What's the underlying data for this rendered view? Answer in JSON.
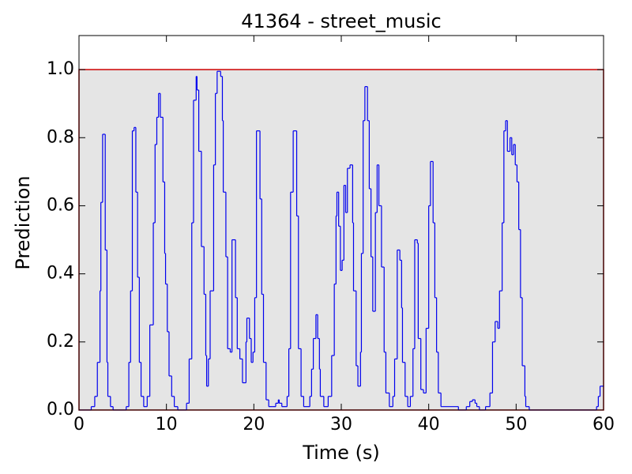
{
  "chart_data": {
    "type": "step",
    "title": "41364 - street_music",
    "x_label": "Time (s)",
    "y_label": "Prediction",
    "xlim": [
      0,
      60
    ],
    "xticks": [
      0,
      10,
      20,
      30,
      40,
      50,
      60
    ],
    "ylim": [
      0,
      1.1
    ],
    "yticks": [
      {
        "value": 0,
        "label": "0.0"
      },
      0.2,
      0.4,
      0.6,
      0.8,
      {
        "value": 1,
        "label": "1.0"
      }
    ],
    "regions": [
      {
        "start": 0,
        "end": 60,
        "value": 1,
        "color": "#e5e5e5",
        "edgecolor": "#cc0000"
      }
    ],
    "series": [
      {
        "color": "#0000ee",
        "x": [
          0,
          1.4,
          1.8,
          2.1,
          2.4,
          2.5,
          2.7,
          3.0,
          3.2,
          3.3,
          3.6,
          3.9,
          4.1,
          5.4,
          5.7,
          5.9,
          6.1,
          6.3,
          6.5,
          6.7,
          6.9,
          7.1,
          7.4,
          7.8,
          8.1,
          8.5,
          8.7,
          8.9,
          9.1,
          9.3,
          9.6,
          9.8,
          9.9,
          10.1,
          10.3,
          10.6,
          10.9,
          11.3,
          12.3,
          12.6,
          12.9,
          13.1,
          13.4,
          13.5,
          13.7,
          14.0,
          14.3,
          14.5,
          14.6,
          14.8,
          15.0,
          15.4,
          15.6,
          15.8,
          16.2,
          16.4,
          16.5,
          16.8,
          17.0,
          17.3,
          17.5,
          17.9,
          18.1,
          18.4,
          18.7,
          19.1,
          19.2,
          19.5,
          19.7,
          19.9,
          20.1,
          20.3,
          20.7,
          20.9,
          21.1,
          21.4,
          21.7,
          22.1,
          22.5,
          22.8,
          22.9,
          23.2,
          23.8,
          24.0,
          24.2,
          24.5,
          24.9,
          25.1,
          25.4,
          25.7,
          26.4,
          26.6,
          26.8,
          27.1,
          27.3,
          27.5,
          27.6,
          28.0,
          28.5,
          28.9,
          29.2,
          29.4,
          29.5,
          29.7,
          29.9,
          30.1,
          30.3,
          30.5,
          30.7,
          31.0,
          31.3,
          31.4,
          31.7,
          31.9,
          32.2,
          32.3,
          32.5,
          32.7,
          33.0,
          33.2,
          33.4,
          33.6,
          33.9,
          34.1,
          34.3,
          34.6,
          34.9,
          35.1,
          35.5,
          35.9,
          36.1,
          36.4,
          36.7,
          36.9,
          37.0,
          37.3,
          37.6,
          37.9,
          38.2,
          38.4,
          38.7,
          38.8,
          39.1,
          39.4,
          39.7,
          40.0,
          40.2,
          40.5,
          40.7,
          40.9,
          41.1,
          41.4,
          43.4,
          44.3,
          44.7,
          45.0,
          45.3,
          45.5,
          45.8,
          46.5,
          47.0,
          47.3,
          47.6,
          47.9,
          48.1,
          48.4,
          48.6,
          48.8,
          49.0,
          49.3,
          49.5,
          49.7,
          49.9,
          50.1,
          50.3,
          50.5,
          50.7,
          51.0,
          51.1,
          51.5,
          59.2,
          59.4,
          59.6
        ],
        "values": [
          0,
          0.01,
          0.04,
          0.14,
          0.35,
          0.61,
          0.81,
          0.47,
          0.14,
          0.04,
          0.01,
          0,
          0,
          0.01,
          0.14,
          0.35,
          0.82,
          0.83,
          0.64,
          0.39,
          0.14,
          0.04,
          0.01,
          0.04,
          0.25,
          0.55,
          0.78,
          0.86,
          0.93,
          0.86,
          0.67,
          0.46,
          0.37,
          0.23,
          0.1,
          0.04,
          0.01,
          0,
          0.02,
          0.15,
          0.55,
          0.91,
          0.98,
          0.94,
          0.76,
          0.48,
          0.34,
          0.16,
          0.07,
          0.15,
          0.35,
          0.72,
          0.93,
          0.995,
          0.98,
          0.85,
          0.64,
          0.45,
          0.18,
          0.17,
          0.5,
          0.33,
          0.18,
          0.15,
          0.08,
          0.2,
          0.27,
          0.21,
          0.14,
          0.17,
          0.33,
          0.82,
          0.62,
          0.34,
          0.14,
          0.03,
          0.01,
          0.01,
          0.02,
          0.03,
          0.02,
          0.01,
          0.04,
          0.18,
          0.64,
          0.82,
          0.57,
          0.18,
          0.04,
          0.01,
          0.04,
          0.12,
          0.21,
          0.28,
          0.21,
          0.12,
          0.04,
          0.01,
          0.04,
          0.16,
          0.37,
          0.57,
          0.64,
          0.54,
          0.41,
          0.44,
          0.66,
          0.58,
          0.71,
          0.72,
          0.55,
          0.35,
          0.13,
          0.07,
          0.17,
          0.46,
          0.85,
          0.95,
          0.85,
          0.65,
          0.45,
          0.29,
          0.58,
          0.72,
          0.6,
          0.42,
          0.17,
          0.05,
          0.01,
          0.04,
          0.15,
          0.47,
          0.44,
          0.3,
          0.14,
          0.04,
          0.01,
          0.04,
          0.18,
          0.5,
          0.49,
          0.21,
          0.06,
          0.05,
          0.24,
          0.6,
          0.73,
          0.55,
          0.33,
          0.17,
          0.05,
          0.01,
          0,
          0.01,
          0.025,
          0.03,
          0.02,
          0.01,
          0,
          0.01,
          0.05,
          0.2,
          0.26,
          0.24,
          0.35,
          0.55,
          0.82,
          0.85,
          0.76,
          0.8,
          0.75,
          0.78,
          0.72,
          0.67,
          0.53,
          0.33,
          0.13,
          0.04,
          0.01,
          0,
          0.01,
          0.04,
          0.07
        ]
      }
    ]
  }
}
